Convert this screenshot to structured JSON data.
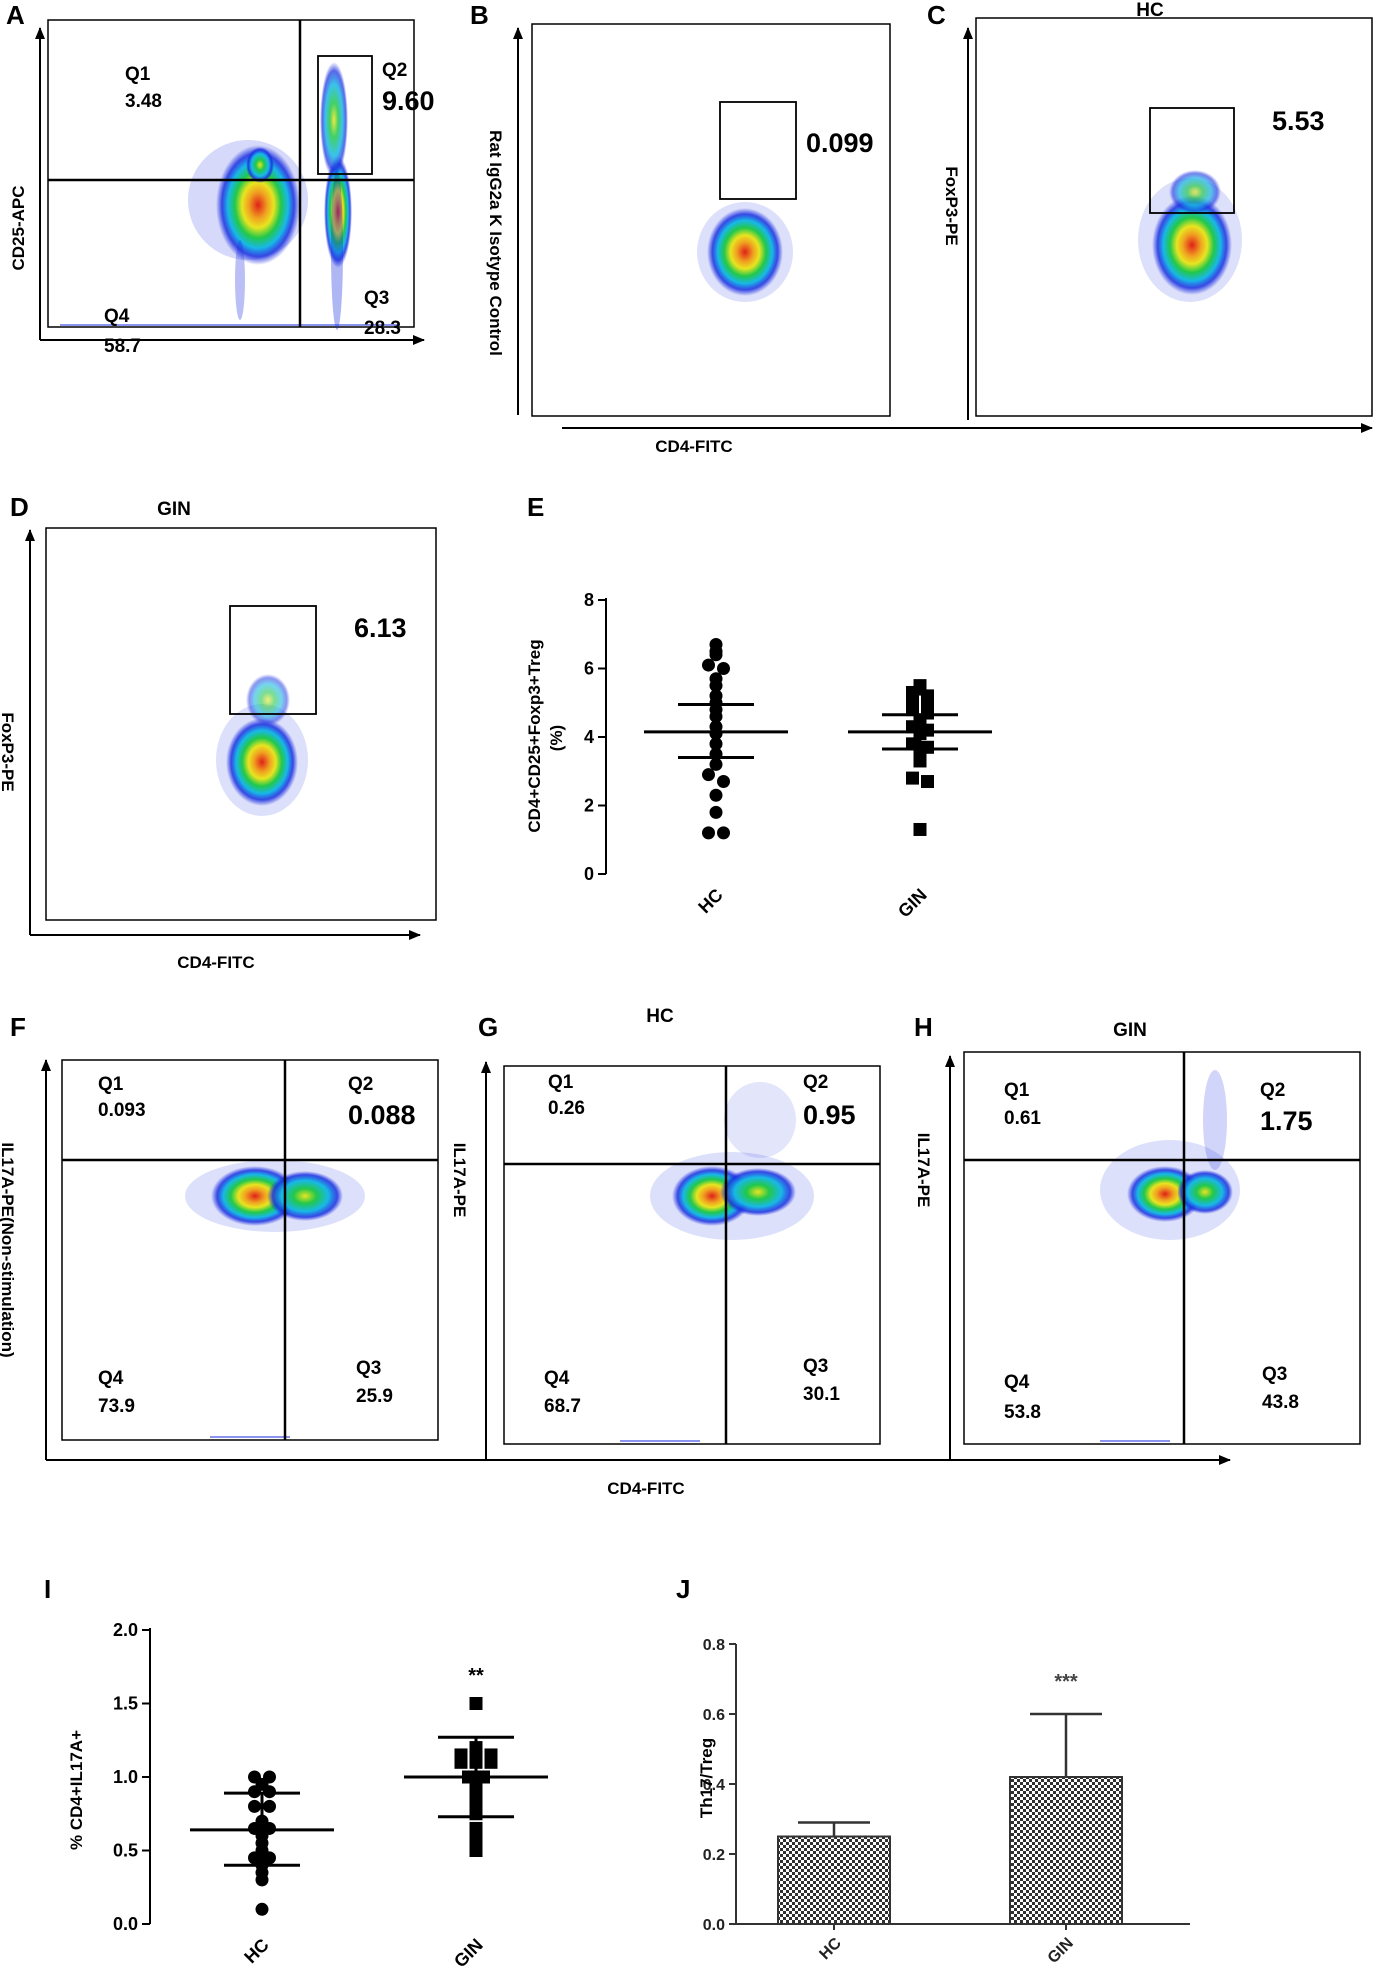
{
  "panels": {
    "A": {
      "letter": "A",
      "ylabel": "CD25-APC",
      "q1": {
        "name": "Q1",
        "value": "3.48"
      },
      "q2": {
        "name": "Q2",
        "value": "9.60"
      },
      "q3": {
        "name": "Q3",
        "value": "28.3"
      },
      "q4": {
        "name": "Q4",
        "value": "58.7"
      }
    },
    "B": {
      "letter": "B",
      "ylabel": "Rat IgG2a K Isotype Control",
      "gate_value": "0.099"
    },
    "C": {
      "letter": "C",
      "title": "HC",
      "ylabel": "FoxP3-PE",
      "gate_value": "5.53"
    },
    "BC_xlabel": "CD4-FITC",
    "D": {
      "letter": "D",
      "title": "GIN",
      "ylabel": "FoxP3-PE",
      "xlabel": "CD4-FITC",
      "gate_value": "6.13"
    },
    "E": {
      "letter": "E",
      "ylabel_line1": "CD4+CD25+Foxp3+Treg",
      "ylabel_line2": "(%)"
    },
    "F": {
      "letter": "F",
      "ylabel": "IL17A-PE(Non-stimulation)",
      "q1": {
        "name": "Q1",
        "value": "0.093"
      },
      "q2": {
        "name": "Q2",
        "value": "0.088"
      },
      "q3": {
        "name": "Q3",
        "value": "25.9"
      },
      "q4": {
        "name": "Q4",
        "value": "73.9"
      }
    },
    "G": {
      "letter": "G",
      "title": "HC",
      "ylabel": "IL17A-PE",
      "q1": {
        "name": "Q1",
        "value": "0.26"
      },
      "q2": {
        "name": "Q2",
        "value": "0.95"
      },
      "q3": {
        "name": "Q3",
        "value": "30.1"
      },
      "q4": {
        "name": "Q4",
        "value": "68.7"
      }
    },
    "H": {
      "letter": "H",
      "title": "GIN",
      "ylabel": "IL17A-PE",
      "q1": {
        "name": "Q1",
        "value": "0.61"
      },
      "q2": {
        "name": "Q2",
        "value": "1.75"
      },
      "q3": {
        "name": "Q3",
        "value": "43.8"
      },
      "q4": {
        "name": "Q4",
        "value": "53.8"
      }
    },
    "FGH_xlabel": "CD4-FITC",
    "I": {
      "letter": "I",
      "ylabel": "% CD4+IL17A+",
      "significance": "**"
    },
    "J": {
      "letter": "J",
      "ylabel": "Th17/Treg",
      "significance": "***"
    }
  },
  "chart_data": [
    {
      "panel": "E",
      "type": "scatter",
      "categories": [
        "HC",
        "GIN"
      ],
      "ylim": [
        0,
        8
      ],
      "yticks": [
        "0",
        "2",
        "4",
        "6",
        "8"
      ],
      "series": [
        {
          "values": [
            6.7,
            6.5,
            6.4,
            6.1,
            6.0,
            5.7,
            5.5,
            5.2,
            5.0,
            4.8,
            4.6,
            4.3,
            4.1,
            3.8,
            3.5,
            3.2,
            2.9,
            2.7,
            2.3,
            1.8,
            1.2,
            1.2
          ],
          "mean": 4.15,
          "sem_low": 3.4,
          "sem_high": 4.95,
          "marker": "circle"
        },
        {
          "values": [
            5.5,
            5.4,
            5.3,
            5.2,
            5.1,
            4.9,
            4.8,
            4.7,
            4.5,
            4.3,
            4.2,
            4.1,
            3.8,
            3.7,
            3.6,
            3.4,
            3.3,
            2.8,
            2.7,
            1.3
          ],
          "mean": 4.15,
          "sem_low": 3.65,
          "sem_high": 4.65,
          "marker": "square"
        }
      ]
    },
    {
      "panel": "I",
      "type": "scatter",
      "categories": [
        "HC",
        "GIN"
      ],
      "ylim": [
        0,
        2.0
      ],
      "yticks": [
        "0.0",
        "0.5",
        "1.0",
        "1.5",
        "2.0"
      ],
      "series": [
        {
          "values": [
            1.0,
            1.0,
            0.95,
            0.9,
            0.9,
            0.8,
            0.8,
            0.7,
            0.65,
            0.65,
            0.6,
            0.55,
            0.5,
            0.45,
            0.45,
            0.4,
            0.35,
            0.3,
            0.1
          ],
          "mean": 0.64,
          "sem_low": 0.4,
          "sem_high": 0.89,
          "marker": "circle"
        },
        {
          "values": [
            1.5,
            1.2,
            1.15,
            1.15,
            1.15,
            1.1,
            1.1,
            1.1,
            1.0,
            1.0,
            0.95,
            0.9,
            0.85,
            0.8,
            0.75,
            0.65,
            0.6,
            0.55,
            0.5
          ],
          "mean": 1.0,
          "sem_low": 0.73,
          "sem_high": 1.27,
          "marker": "square"
        }
      ]
    },
    {
      "panel": "J",
      "type": "bar",
      "categories": [
        "HC",
        "GIN"
      ],
      "values": [
        0.25,
        0.42
      ],
      "error_high": [
        0.29,
        0.6
      ],
      "ylim": [
        0,
        0.8
      ],
      "yticks": [
        "0.0",
        "0.2",
        "0.4",
        "0.6",
        "0.8"
      ],
      "fill": "checkerboard"
    }
  ],
  "colors": {
    "density_red": "#e0201a",
    "density_yellow": "#e8e520",
    "density_green": "#22c84a",
    "density_cyan": "#18b8e8",
    "density_blue": "#1a2ee0",
    "axis": "#000000",
    "bar_dark": "#303030"
  }
}
